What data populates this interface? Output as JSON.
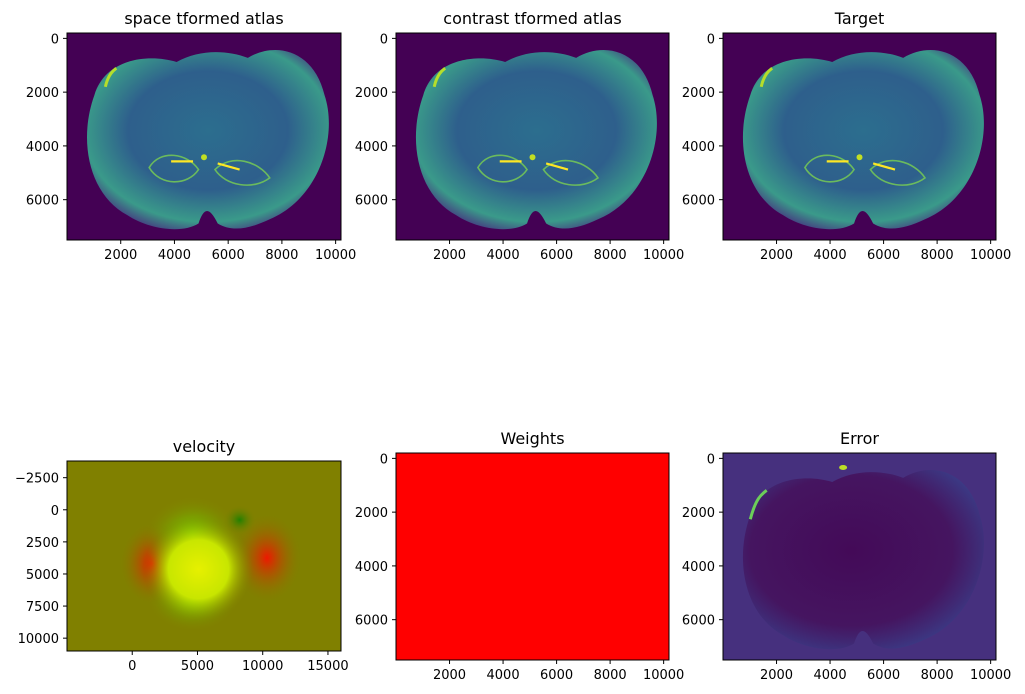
{
  "chart_data": [
    {
      "type": "heatmap",
      "title": "space tformed atlas",
      "colormap": "viridis",
      "xlim": [
        0,
        10200
      ],
      "ylim": [
        7500,
        -200
      ],
      "xticks": [
        2000,
        4000,
        6000,
        8000,
        10000
      ],
      "yticks": [
        0,
        2000,
        4000,
        6000
      ],
      "image": "brain-section"
    },
    {
      "type": "heatmap",
      "title": "contrast tformed atlas",
      "colormap": "viridis",
      "xlim": [
        0,
        10200
      ],
      "ylim": [
        7500,
        -200
      ],
      "xticks": [
        2000,
        4000,
        6000,
        8000,
        10000
      ],
      "yticks": [
        0,
        2000,
        4000,
        6000
      ],
      "image": "brain-section"
    },
    {
      "type": "heatmap",
      "title": "Target",
      "colormap": "viridis",
      "xlim": [
        0,
        10200
      ],
      "ylim": [
        7500,
        -200
      ],
      "xticks": [
        2000,
        4000,
        6000,
        8000,
        10000
      ],
      "yticks": [
        0,
        2000,
        4000,
        6000
      ],
      "image": "brain-section"
    },
    {
      "type": "heatmap",
      "title": "velocity",
      "colormap": "rgb",
      "xlim": [
        -5000,
        16000
      ],
      "ylim": [
        11000,
        -3800
      ],
      "xticks": [
        0,
        5000,
        10000,
        15000
      ],
      "yticks": [
        -2500,
        0,
        2500,
        5000,
        7500,
        10000
      ],
      "background_color": "#808000",
      "image": "velocity-field"
    },
    {
      "type": "heatmap",
      "title": "Weights",
      "colormap": "rgb",
      "xlim": [
        0,
        10200
      ],
      "ylim": [
        7500,
        -200
      ],
      "xticks": [
        2000,
        4000,
        6000,
        8000,
        10000
      ],
      "yticks": [
        0,
        2000,
        4000,
        6000
      ],
      "fill_color": "#ff0000",
      "image": "uniform"
    },
    {
      "type": "heatmap",
      "title": "Error",
      "colormap": "viridis",
      "xlim": [
        0,
        10200
      ],
      "ylim": [
        7500,
        -200
      ],
      "xticks": [
        2000,
        4000,
        6000,
        8000,
        10000
      ],
      "yticks": [
        0,
        2000,
        4000,
        6000
      ],
      "image": "error-map"
    }
  ]
}
